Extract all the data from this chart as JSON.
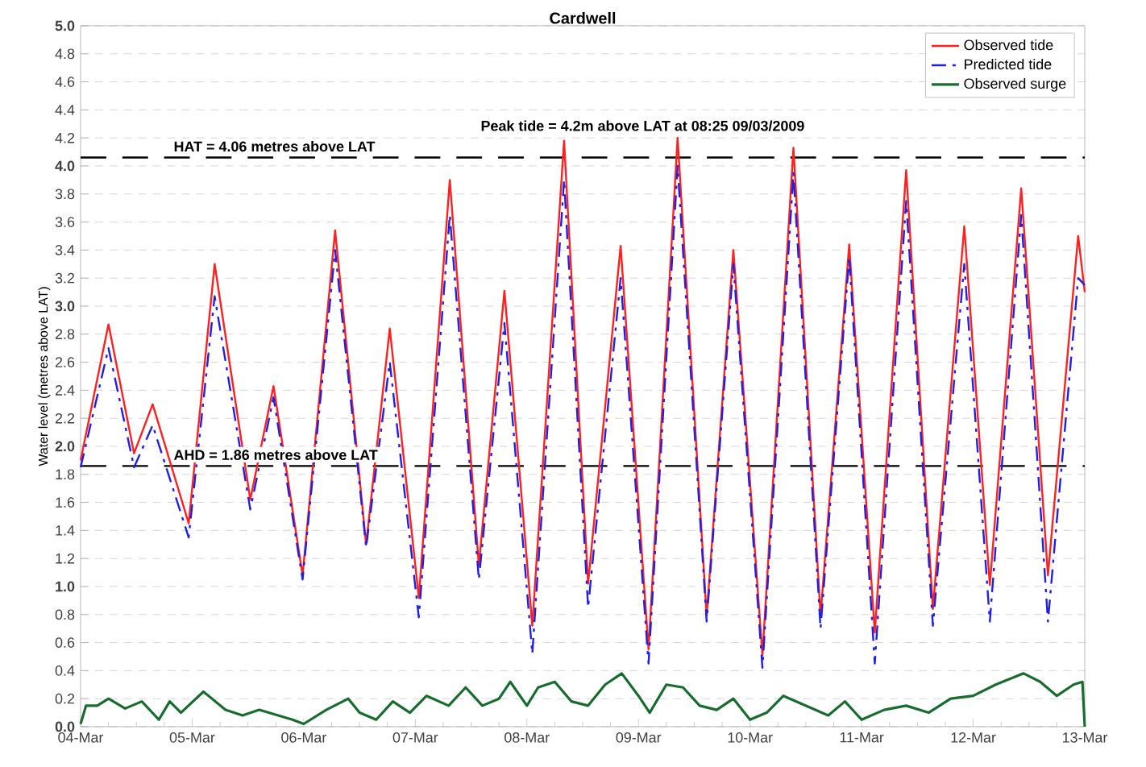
{
  "chart_data": {
    "type": "line",
    "title": "Cardwell",
    "ylabel": "Water level  (metres above LAT)",
    "xlim": [
      "2009-03-04",
      "2009-03-13"
    ],
    "xticks": [
      {
        "value": "2009-03-04",
        "label": "04-Mar"
      },
      {
        "value": "2009-03-05",
        "label": "05-Mar"
      },
      {
        "value": "2009-03-06",
        "label": "06-Mar"
      },
      {
        "value": "2009-03-07",
        "label": "07-Mar"
      },
      {
        "value": "2009-03-08",
        "label": "08-Mar"
      },
      {
        "value": "2009-03-09",
        "label": "09-Mar"
      },
      {
        "value": "2009-03-10",
        "label": "10-Mar"
      },
      {
        "value": "2009-03-11",
        "label": "11-Mar"
      },
      {
        "value": "2009-03-12",
        "label": "12-Mar"
      },
      {
        "value": "2009-03-13",
        "label": "13-Mar"
      }
    ],
    "ylim": [
      0,
      5
    ],
    "yticks": [
      {
        "value": 0,
        "label": "0.0"
      },
      {
        "value": 0.2,
        "label": "0.2"
      },
      {
        "value": 0.4,
        "label": "0.4"
      },
      {
        "value": 0.6,
        "label": "0.6"
      },
      {
        "value": 0.8,
        "label": "0.8"
      },
      {
        "value": 1,
        "label": "1.0"
      },
      {
        "value": 1.2,
        "label": "1.2"
      },
      {
        "value": 1.4,
        "label": "1.4"
      },
      {
        "value": 1.6,
        "label": "1.6"
      },
      {
        "value": 1.8,
        "label": "1.8"
      },
      {
        "value": 2,
        "label": "2.0"
      },
      {
        "value": 2.2,
        "label": "2.2"
      },
      {
        "value": 2.4,
        "label": "2.4"
      },
      {
        "value": 2.6,
        "label": "2.6"
      },
      {
        "value": 2.8,
        "label": "2.8"
      },
      {
        "value": 3,
        "label": "3.0"
      },
      {
        "value": 3.2,
        "label": "3.2"
      },
      {
        "value": 3.4,
        "label": "3.4"
      },
      {
        "value": 3.6,
        "label": "3.6"
      },
      {
        "value": 3.8,
        "label": "3.8"
      },
      {
        "value": 4,
        "label": "4.0"
      },
      {
        "value": 4.2,
        "label": "4.2"
      },
      {
        "value": 4.4,
        "label": "4.4"
      },
      {
        "value": 4.6,
        "label": "4.6"
      },
      {
        "value": 4.8,
        "label": "4.8"
      },
      {
        "value": 5,
        "label": "5.0"
      }
    ],
    "grid": "y",
    "legend": "top right",
    "x": [
      "2009-03-04T00:00",
      "2009-03-04T06:00",
      "2009-03-04T11:30",
      "2009-03-04T15:30",
      "2009-03-04T23:15",
      "2009-03-05T04:50",
      "2009-03-05T12:30",
      "2009-03-05T17:30",
      "2009-03-05T23:45",
      "2009-03-06T06:45",
      "2009-03-06T13:25",
      "2009-03-06T18:30",
      "2009-03-07T00:45",
      "2009-03-07T07:25",
      "2009-03-07T13:40",
      "2009-03-07T19:10",
      "2009-03-08T01:10",
      "2009-03-08T08:00",
      "2009-03-08T13:10",
      "2009-03-08T20:10",
      "2009-03-09T02:10",
      "2009-03-09T08:25",
      "2009-03-09T14:40",
      "2009-03-09T20:25",
      "2009-03-10T02:40",
      "2009-03-10T09:20",
      "2009-03-10T15:10",
      "2009-03-10T21:20",
      "2009-03-11T02:50",
      "2009-03-11T09:35",
      "2009-03-11T15:20",
      "2009-03-11T22:05",
      "2009-03-12T03:35",
      "2009-03-12T10:20",
      "2009-03-12T16:05",
      "2009-03-12T22:35",
      "2009-03-13T00:00"
    ],
    "series": [
      {
        "name": "Observed tide",
        "color": "#ff2020",
        "line_style": "solid",
        "values": [
          1.9,
          2.87,
          1.95,
          2.3,
          1.45,
          3.3,
          1.62,
          2.43,
          1.08,
          3.54,
          1.3,
          2.84,
          0.92,
          3.9,
          1.15,
          3.11,
          0.72,
          4.18,
          1.02,
          3.43,
          0.55,
          4.2,
          0.79,
          3.4,
          0.51,
          4.13,
          0.79,
          3.44,
          0.67,
          3.97,
          0.84,
          3.57,
          1.01,
          3.84,
          1.08,
          3.5,
          3.1
        ]
      },
      {
        "name": "Predicted tide",
        "color": "#2020e0",
        "line_style": "dashed",
        "values": [
          1.85,
          2.7,
          1.85,
          2.15,
          1.35,
          3.07,
          1.55,
          2.35,
          1.05,
          3.4,
          1.28,
          2.6,
          0.78,
          3.65,
          1.05,
          2.88,
          0.52,
          3.9,
          0.85,
          3.2,
          0.45,
          4.0,
          0.75,
          3.3,
          0.42,
          3.95,
          0.7,
          3.35,
          0.45,
          3.75,
          0.72,
          3.3,
          0.75,
          3.65,
          0.75,
          3.2,
          3.15
        ]
      },
      {
        "name": "Observed surge",
        "color": "#1a6b30",
        "line_style": "solid",
        "x": [
          "2009-03-04T00:00",
          "2009-03-04T01:10",
          "2009-03-04T03:35",
          "2009-03-04T06:00",
          "2009-03-04T09:35",
          "2009-03-04T13:10",
          "2009-03-04T16:50",
          "2009-03-04T19:10",
          "2009-03-04T21:35",
          "2009-03-05T02:25",
          "2009-03-05T07:10",
          "2009-03-05T10:50",
          "2009-03-05T14:25",
          "2009-03-05T21:35",
          "2009-03-06T00:00",
          "2009-03-06T04:50",
          "2009-03-06T09:35",
          "2009-03-06T12:00",
          "2009-03-06T15:35",
          "2009-03-06T19:10",
          "2009-03-06T22:50",
          "2009-03-07T02:25",
          "2009-03-07T07:10",
          "2009-03-07T10:50",
          "2009-03-07T14:25",
          "2009-03-07T18:00",
          "2009-03-07T20:25",
          "2009-03-08T00:00",
          "2009-03-08T02:25",
          "2009-03-08T06:00",
          "2009-03-08T09:35",
          "2009-03-08T13:10",
          "2009-03-08T16:50",
          "2009-03-08T20:25",
          "2009-03-09T00:00",
          "2009-03-09T02:25",
          "2009-03-09T06:00",
          "2009-03-09T09:35",
          "2009-03-09T13:10",
          "2009-03-09T16:50",
          "2009-03-09T20:25",
          "2009-03-10T00:00",
          "2009-03-10T03:35",
          "2009-03-10T07:10",
          "2009-03-10T12:00",
          "2009-03-10T16:50",
          "2009-03-10T20:25",
          "2009-03-11T00:00",
          "2009-03-11T04:50",
          "2009-03-11T09:35",
          "2009-03-11T14:25",
          "2009-03-11T19:10",
          "2009-03-12T00:00",
          "2009-03-12T04:50",
          "2009-03-12T10:50",
          "2009-03-12T14:25",
          "2009-03-12T18:00",
          "2009-03-12T21:35",
          "2009-03-12T23:30",
          "2009-03-13T00:00"
        ],
        "values": [
          0.02,
          0.15,
          0.15,
          0.2,
          0.13,
          0.18,
          0.05,
          0.18,
          0.1,
          0.25,
          0.12,
          0.08,
          0.12,
          0.05,
          0.02,
          0.12,
          0.2,
          0.1,
          0.05,
          0.18,
          0.1,
          0.22,
          0.15,
          0.28,
          0.15,
          0.2,
          0.32,
          0.15,
          0.28,
          0.32,
          0.18,
          0.15,
          0.3,
          0.38,
          0.22,
          0.1,
          0.3,
          0.28,
          0.15,
          0.12,
          0.2,
          0.05,
          0.1,
          0.22,
          0.15,
          0.08,
          0.18,
          0.05,
          0.12,
          0.15,
          0.1,
          0.2,
          0.22,
          0.3,
          0.38,
          0.32,
          0.22,
          0.3,
          0.32,
          0.0
        ]
      }
    ],
    "ref_lines": [
      {
        "axis": "y",
        "value": 4.06,
        "label": "HAT = 4.06 metres above LAT",
        "color": "#000000",
        "line_style": "dashed"
      },
      {
        "axis": "y",
        "value": 1.86,
        "label": "AHD = 1.86 metres above LAT",
        "color": "#000000",
        "line_style": "dashed"
      }
    ],
    "annotations": [
      {
        "text": "Peak tide = 4.2m above LAT at 08:25 09/03/2009",
        "x": "2009-03-09T08:25",
        "y": 4.2
      }
    ]
  }
}
